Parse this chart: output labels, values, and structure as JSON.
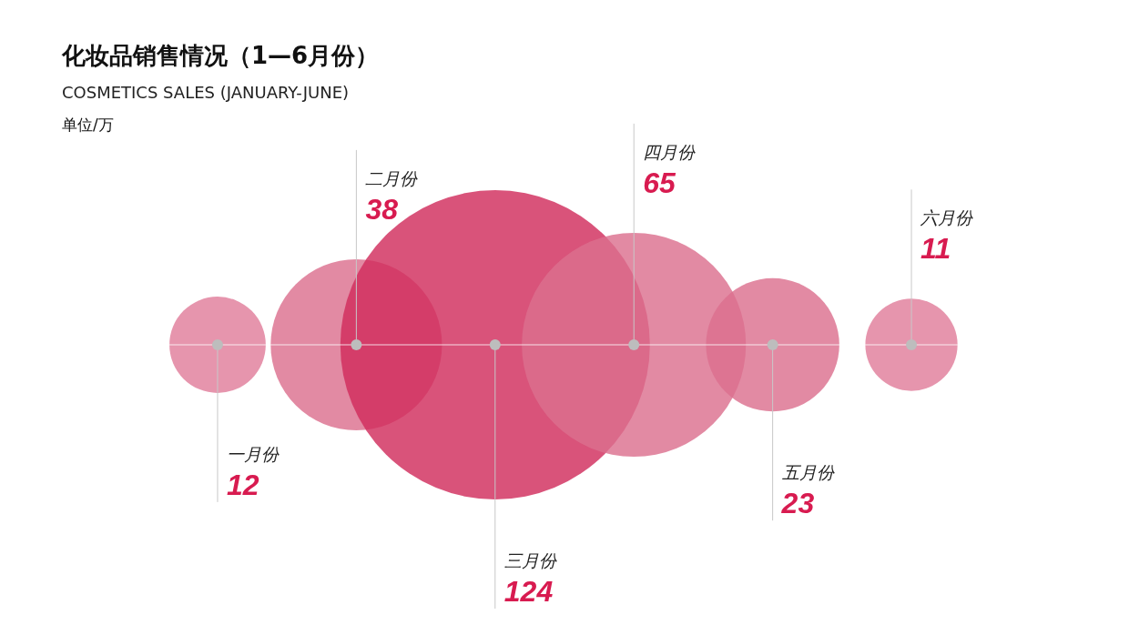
{
  "chart_data": {
    "type": "other",
    "title": "化妆品销售情况（1—6月份）",
    "subtitle": "COSMETICS SALES (JANUARY-JUNE)",
    "annotations": [
      "单位/万"
    ],
    "categories": [
      "一月份",
      "二月份",
      "三月份",
      "四月份",
      "五月份",
      "六月份"
    ],
    "values": [
      12,
      38,
      124,
      65,
      23,
      11
    ],
    "colors": [
      "#e07d9a",
      "#dc6f8e",
      "#d02c5c",
      "#dc6f8e",
      "#dc6f8e",
      "#e07d9a"
    ],
    "data_labels": true
  }
}
